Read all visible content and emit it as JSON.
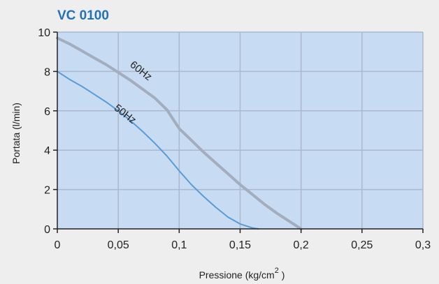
{
  "chart_data": {
    "type": "line",
    "title": "VC 0100",
    "xlabel": "Pressione (kg/cm",
    "xlabel_sup": "2",
    "xlabel_tail": " )",
    "ylabel": "Portata (l/min)",
    "xlim": [
      0,
      0.3
    ],
    "ylim": [
      0,
      10
    ],
    "xticks": [
      {
        "value": 0,
        "label": "0"
      },
      {
        "value": 0.05,
        "label": "0,05"
      },
      {
        "value": 0.1,
        "label": "0,1"
      },
      {
        "value": 0.15,
        "label": "0,15"
      },
      {
        "value": 0.2,
        "label": "0,2"
      },
      {
        "value": 0.25,
        "label": "0,25"
      },
      {
        "value": 0.3,
        "label": "0,3"
      }
    ],
    "yticks": [
      {
        "value": 0,
        "label": "0"
      },
      {
        "value": 2,
        "label": "2"
      },
      {
        "value": 4,
        "label": "4"
      },
      {
        "value": 6,
        "label": "6"
      },
      {
        "value": 8,
        "label": "8"
      },
      {
        "value": 10,
        "label": "10"
      }
    ],
    "grid": true,
    "series": [
      {
        "name": "60Hz",
        "color": "#a3adbd",
        "x": [
          0,
          0.01,
          0.02,
          0.03,
          0.04,
          0.05,
          0.06,
          0.07,
          0.08,
          0.09,
          0.1,
          0.11,
          0.12,
          0.13,
          0.14,
          0.15,
          0.16,
          0.17,
          0.18,
          0.19,
          0.2
        ],
        "y": [
          9.7,
          9.4,
          9.05,
          8.7,
          8.35,
          7.95,
          7.55,
          7.1,
          6.65,
          6.05,
          5.1,
          4.5,
          3.9,
          3.35,
          2.8,
          2.25,
          1.75,
          1.25,
          0.8,
          0.4,
          0
        ]
      },
      {
        "name": "50Hz",
        "color": "#5b9bd5",
        "x": [
          0,
          0.01,
          0.02,
          0.03,
          0.04,
          0.05,
          0.06,
          0.07,
          0.08,
          0.09,
          0.1,
          0.11,
          0.12,
          0.13,
          0.14,
          0.15,
          0.16,
          0.165
        ],
        "y": [
          8.0,
          7.6,
          7.25,
          6.85,
          6.45,
          6.0,
          5.5,
          4.95,
          4.35,
          3.7,
          2.95,
          2.25,
          1.65,
          1.1,
          0.6,
          0.25,
          0.05,
          0
        ]
      }
    ],
    "annotations": [
      {
        "text": "60Hz",
        "x": 0.067,
        "y": 7.9,
        "angle": 38
      },
      {
        "text": "50Hz",
        "x": 0.054,
        "y": 5.7,
        "angle": 38
      }
    ],
    "colors": {
      "background": "#eeeeee",
      "plot_area": "#c7dcf2",
      "grid": "#aab7cc",
      "axis": "#222222",
      "title": "#2272b8"
    }
  }
}
